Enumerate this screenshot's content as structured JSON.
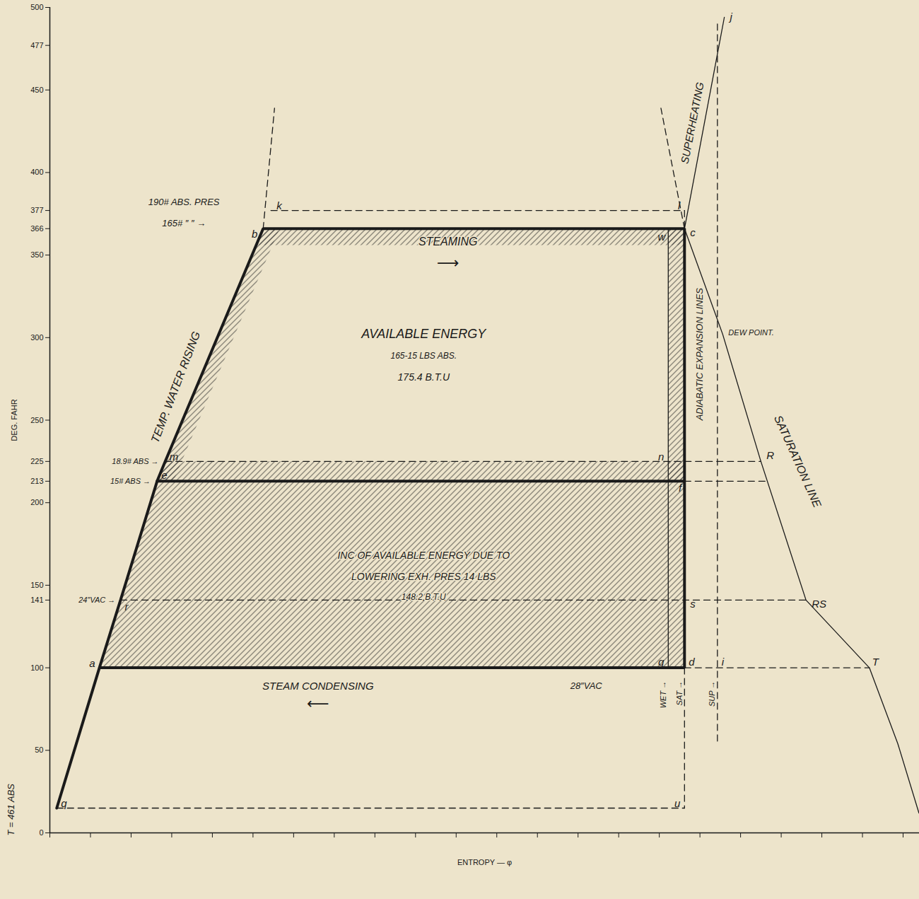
{
  "chart_data": {
    "type": "line",
    "xlabel": "ENTROPY — φ",
    "ylabel": "DEG. FAHR",
    "xlim": [
      0,
      2.14
    ],
    "xticks": [
      0,
      0.1,
      0.2,
      0.3,
      0.4,
      0.5,
      0.6,
      0.7,
      0.8,
      0.9,
      1.0,
      1.1,
      1.2,
      1.3,
      1.4,
      1.5,
      1.6,
      1.7,
      1.8,
      1.9,
      2.0,
      2.1
    ],
    "ylim": [
      0,
      500
    ],
    "yticks": [
      0,
      50,
      100,
      141,
      150,
      200,
      213,
      225,
      250,
      300,
      350,
      366,
      377,
      400,
      450,
      477,
      500
    ],
    "tick_labels": "y",
    "grid": false,
    "series": [
      {
        "type": "area",
        "color": "#2b2b2b",
        "x": [
          0.122,
          0.174,
          0.264,
          1.562,
          1.562
        ],
        "y": [
          100,
          141,
          213,
          213,
          100
        ]
      },
      {
        "type": "area",
        "color": "#2b2b2b",
        "x": [
          0.264,
          0.284,
          1.562,
          1.562
        ],
        "y": [
          213,
          225,
          225,
          213
        ]
      },
      {
        "type": "area",
        "color": "#2b2b2b",
        "x": [
          0.508,
          0.525,
          1.562,
          1.562
        ],
        "y": [
          356,
          366,
          366,
          356
        ]
      },
      {
        "type": "area",
        "color": "#2b2b2b",
        "x": [
          0.264,
          0.525,
          0.565,
          0.304
        ],
        "y": [
          213,
          366,
          366,
          213
        ]
      },
      {
        "type": "area",
        "color": "#2b2b2b",
        "x": [
          1.522,
          1.522,
          1.562,
          1.562
        ],
        "y": [
          213,
          366,
          366,
          213
        ]
      },
      {
        "type": "line",
        "line_style": "bold",
        "color": "#1a1a1a",
        "x": [
          0.017,
          0.122,
          0.174,
          0.264,
          0.284,
          0.525,
          1.562,
          1.562,
          0.122
        ],
        "y": [
          15,
          100,
          141,
          213,
          225,
          366,
          366,
          100,
          100
        ]
      },
      {
        "type": "line",
        "line_style": "bold",
        "color": "#1a1a1a",
        "x": [
          0.264,
          1.562
        ],
        "y": [
          213,
          213
        ]
      },
      {
        "type": "line",
        "line_style": "solid",
        "color": "#1a1a1a",
        "x": [
          1.562,
          1.66
        ],
        "y": [
          366,
          494
        ]
      },
      {
        "type": "line",
        "line_style": "solid",
        "color": "#1a1a1a",
        "x": [
          1.562,
          1.656,
          1.75,
          1.861,
          2.017,
          2.087,
          2.139
        ],
        "y": [
          366,
          302,
          225,
          141,
          100,
          54,
          12
        ]
      },
      {
        "type": "line",
        "line_style": "solid",
        "color": "#1a1a1a",
        "x": [
          1.522,
          1.522
        ],
        "y": [
          366,
          100
        ]
      },
      {
        "type": "line",
        "line_style": "dashed",
        "color": "#1a1a1a",
        "x": [
          0.544,
          1.562
        ],
        "y": [
          377,
          377
        ]
      },
      {
        "type": "line",
        "line_style": "dashed",
        "color": "#1a1a1a",
        "x": [
          1.562,
          1.562
        ],
        "y": [
          377,
          366
        ]
      },
      {
        "type": "line",
        "line_style": "dashed",
        "color": "#1a1a1a",
        "x": [
          0.284,
          1.75
        ],
        "y": [
          225,
          225
        ]
      },
      {
        "type": "line",
        "line_style": "dashed",
        "color": "#1a1a1a",
        "x": [
          1.562,
          1.766
        ],
        "y": [
          213,
          213
        ]
      },
      {
        "type": "line",
        "line_style": "dashed",
        "color": "#1a1a1a",
        "x": [
          0.174,
          1.861
        ],
        "y": [
          141,
          141
        ]
      },
      {
        "type": "line",
        "line_style": "dashed",
        "color": "#1a1a1a",
        "x": [
          1.562,
          2.017
        ],
        "y": [
          100,
          100
        ]
      },
      {
        "type": "line",
        "line_style": "dashed",
        "color": "#1a1a1a",
        "x": [
          0.017,
          1.562
        ],
        "y": [
          15,
          15
        ]
      },
      {
        "type": "line",
        "line_style": "dashed",
        "color": "#1a1a1a",
        "x": [
          1.562,
          1.562
        ],
        "y": [
          100,
          15
        ]
      },
      {
        "type": "line",
        "line_style": "dashed",
        "color": "#1a1a1a",
        "x": [
          1.643,
          1.643
        ],
        "y": [
          490,
          55
        ]
      },
      {
        "type": "line",
        "line_style": "dashed",
        "color": "#1a1a1a",
        "x": [
          0.525,
          0.553
        ],
        "y": [
          366,
          439
        ]
      },
      {
        "type": "line",
        "line_style": "dashed",
        "color": "#1a1a1a",
        "x": [
          1.562,
          1.504
        ],
        "y": [
          366,
          439
        ]
      }
    ],
    "points": [
      {
        "label": "q",
        "x": 0.017,
        "y": 15
      },
      {
        "label": "a",
        "x": 0.122,
        "y": 100
      },
      {
        "label": "r",
        "x": 0.174,
        "y": 141
      },
      {
        "label": "e",
        "x": 0.264,
        "y": 213
      },
      {
        "label": "m",
        "x": 0.284,
        "y": 225
      },
      {
        "label": "b",
        "x": 0.525,
        "y": 366
      },
      {
        "label": "k",
        "x": 0.544,
        "y": 377
      },
      {
        "label": "l",
        "x": 1.562,
        "y": 377
      },
      {
        "label": "c",
        "x": 1.562,
        "y": 366
      },
      {
        "label": "w",
        "x": 1.522,
        "y": 366
      },
      {
        "label": "n",
        "x": 1.522,
        "y": 225
      },
      {
        "label": "f",
        "x": 1.562,
        "y": 213
      },
      {
        "label": "s",
        "x": 1.562,
        "y": 141
      },
      {
        "label": "g",
        "x": 1.522,
        "y": 100
      },
      {
        "label": "d",
        "x": 1.562,
        "y": 100
      },
      {
        "label": "i",
        "x": 1.643,
        "y": 100
      },
      {
        "label": "u",
        "x": 1.562,
        "y": 15
      },
      {
        "label": "j",
        "x": 1.66,
        "y": 494
      },
      {
        "label": "R",
        "x": 1.75,
        "y": 225
      },
      {
        "label": "RS",
        "x": 1.861,
        "y": 141
      },
      {
        "label": "T",
        "x": 2.017,
        "y": 100
      }
    ],
    "annotations": [
      {
        "text": "T = 461 ABS",
        "x": 0,
        "y": 14
      },
      {
        "text": "190# ABS. PRES",
        "x": 0.33,
        "y": 382
      },
      {
        "text": "165# ″ ″ →",
        "x": 0.33,
        "y": 369
      },
      {
        "text": "STEAMING",
        "x": 0.98,
        "y": 358
      },
      {
        "text": "⟶",
        "x": 0.98,
        "y": 345
      },
      {
        "text": "AVAILABLE ENERGY",
        "x": 0.92,
        "y": 302
      },
      {
        "text": "165-15 LBS ABS.",
        "x": 0.92,
        "y": 289
      },
      {
        "text": "175.4 B.T.U",
        "x": 0.92,
        "y": 276
      },
      {
        "text": "TEMP. WATER RISING",
        "x": 0.31,
        "y": 270
      },
      {
        "text": "18.9# ABS →",
        "x": 0.275,
        "y": 225
      },
      {
        "text": "15# ABS →",
        "x": 0.255,
        "y": 213
      },
      {
        "text": "INC OF AVAILABLE ENERGY DUE TO",
        "x": 0.92,
        "y": 168
      },
      {
        "text": "LOWERING EXH. PRES 14 LBS",
        "x": 0.92,
        "y": 155
      },
      {
        "text": "148.2 B.T.U",
        "x": 0.92,
        "y": 143
      },
      {
        "text": "24″VAC →",
        "x": 0.165,
        "y": 141
      },
      {
        "text": "STEAM CONDENSING",
        "x": 0.66,
        "y": 89
      },
      {
        "text": "⟵",
        "x": 0.66,
        "y": 78
      },
      {
        "text": "28″VAC",
        "x": 1.32,
        "y": 89
      },
      {
        "text": "ADIABATIC EXPANSION LINES",
        "x": 1.6,
        "y": 290
      },
      {
        "text": "DEW POINT.",
        "x": 1.67,
        "y": 303
      },
      {
        "text": "SATURATION LINE",
        "x": 1.84,
        "y": 225
      },
      {
        "text": "SUPERHEATING",
        "x": 1.582,
        "y": 430
      },
      {
        "text": "WET →",
        "x": 1.522,
        "y": 92
      },
      {
        "text": "SAT →",
        "x": 1.562,
        "y": 92
      },
      {
        "text": "SUP →",
        "x": 1.643,
        "y": 92
      }
    ]
  }
}
